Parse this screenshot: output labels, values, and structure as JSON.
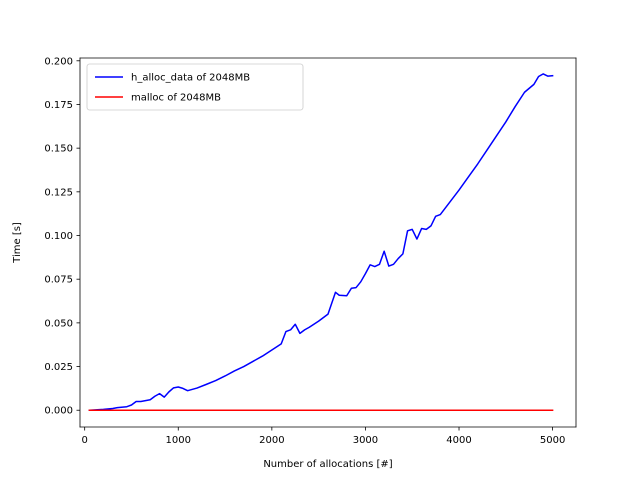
{
  "chart_data": {
    "type": "line",
    "title": "",
    "xlabel": "Number of allocations [#]",
    "ylabel": "Time [s]",
    "xlim": [
      -50,
      5250
    ],
    "ylim": [
      -0.0096,
      0.2016
    ],
    "xticks": [
      0,
      1000,
      2000,
      3000,
      4000,
      5000
    ],
    "xtick_labels": [
      "0",
      "1000",
      "2000",
      "3000",
      "4000",
      "5000"
    ],
    "yticks": [
      0.0,
      0.025,
      0.05,
      0.075,
      0.1,
      0.125,
      0.15,
      0.175,
      0.2
    ],
    "ytick_labels": [
      "0.000",
      "0.025",
      "0.050",
      "0.075",
      "0.100",
      "0.125",
      "0.150",
      "0.175",
      "0.200"
    ],
    "grid": false,
    "legend_position": "upper-left",
    "series": [
      {
        "name": "h_alloc_data of 2048MB",
        "color": "#0000ff",
        "x": [
          50,
          200,
          300,
          350,
          450,
          500,
          550,
          600,
          700,
          750,
          800,
          850,
          900,
          950,
          1000,
          1050,
          1100,
          1200,
          1300,
          1400,
          1500,
          1600,
          1700,
          1800,
          1900,
          2000,
          2100,
          2150,
          2200,
          2250,
          2300,
          2350,
          2400,
          2500,
          2600,
          2680,
          2720,
          2800,
          2850,
          2900,
          2950,
          3000,
          3050,
          3100,
          3150,
          3200,
          3250,
          3300,
          3350,
          3400,
          3450,
          3500,
          3550,
          3600,
          3650,
          3700,
          3750,
          3800,
          3900,
          4000,
          4100,
          4200,
          4300,
          4400,
          4500,
          4600,
          4700,
          4800,
          4850,
          4900,
          4950,
          5000
        ],
        "values": [
          0.0,
          0.0005,
          0.001,
          0.0015,
          0.002,
          0.003,
          0.005,
          0.005,
          0.006,
          0.008,
          0.0095,
          0.0075,
          0.0105,
          0.0128,
          0.0133,
          0.0125,
          0.0112,
          0.0127,
          0.0148,
          0.017,
          0.0196,
          0.0225,
          0.025,
          0.028,
          0.031,
          0.0345,
          0.038,
          0.045,
          0.046,
          0.0492,
          0.044,
          0.046,
          0.0475,
          0.051,
          0.055,
          0.0675,
          0.0658,
          0.0655,
          0.0698,
          0.0702,
          0.0735,
          0.0782,
          0.0832,
          0.0822,
          0.0835,
          0.091,
          0.0825,
          0.0835,
          0.0868,
          0.0895,
          0.1027,
          0.1035,
          0.098,
          0.104,
          0.1035,
          0.1055,
          0.111,
          0.112,
          0.119,
          0.126,
          0.1335,
          0.141,
          0.149,
          0.157,
          0.165,
          0.1738,
          0.182,
          0.1865,
          0.191,
          0.1925,
          0.1912,
          0.1915
        ],
        "values_note": ""
      },
      {
        "name": "malloc of 2048MB",
        "color": "#ff0000",
        "x": [
          50,
          500,
          1000,
          1500,
          2000,
          2500,
          3000,
          3500,
          4000,
          4500,
          5000
        ],
        "values": [
          0.0,
          0.0,
          0.0,
          0.0,
          0.0,
          0.0,
          0.0,
          0.0,
          0.0,
          0.0,
          0.0
        ]
      }
    ]
  }
}
